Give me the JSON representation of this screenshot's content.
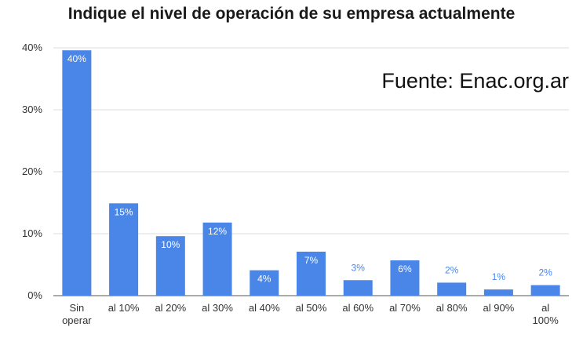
{
  "chart_data": {
    "type": "bar",
    "title": "Indique el nivel de operación de su empresa actualmente",
    "annotation": "Fuente: Enac.org.ar",
    "categories": [
      "Sin\noperar",
      "al 10%",
      "al 20%",
      "al 30%",
      "al 40%",
      "al 50%",
      "al 60%",
      "al 70%",
      "al 80%",
      "al 90%",
      "al\n100%"
    ],
    "values": [
      39.6,
      14.9,
      9.6,
      11.8,
      4.1,
      7.1,
      2.5,
      5.7,
      2.1,
      1.0,
      1.7
    ],
    "data_labels": [
      "40%",
      "15%",
      "10%",
      "12%",
      "4%",
      "7%",
      "3%",
      "6%",
      "2%",
      "1%",
      "2%"
    ],
    "yticks": [
      "0%",
      "10%",
      "20%",
      "30%",
      "40%"
    ],
    "ylim": [
      0,
      40
    ],
    "xlabel": "",
    "ylabel": "",
    "grid": true,
    "bar_color": "#4a86e8"
  }
}
